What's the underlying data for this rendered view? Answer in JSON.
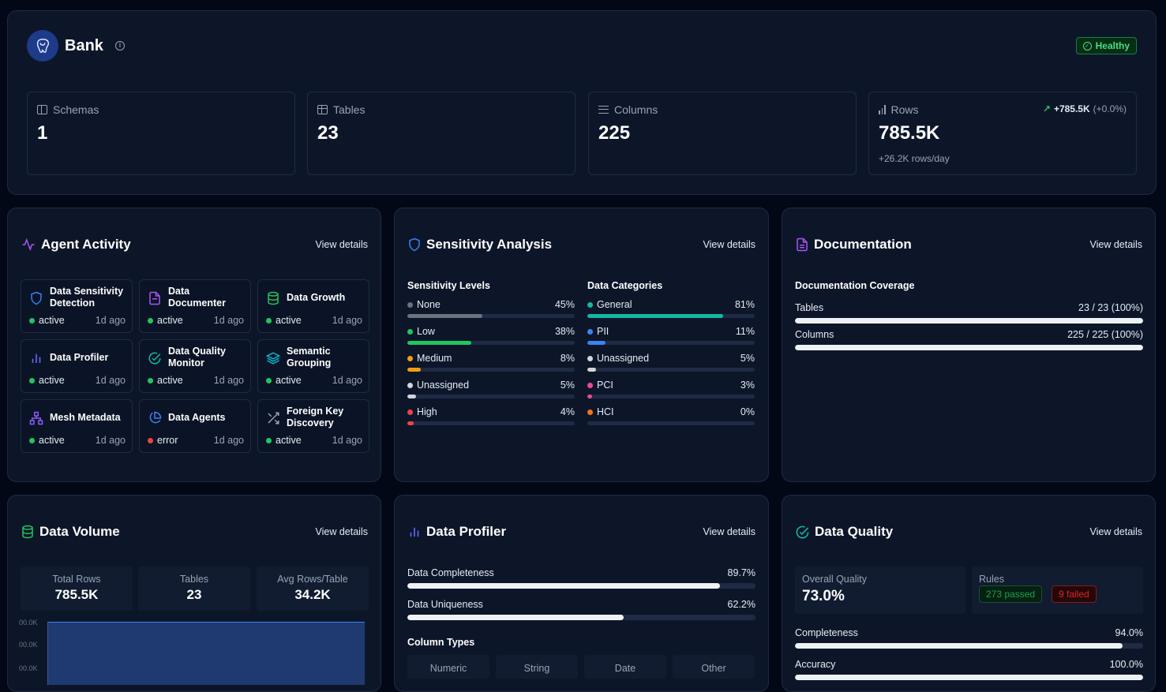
{
  "header": {
    "title": "Bank",
    "status": "Healthy",
    "colors": {
      "healthy": "#22c55e",
      "accent": "#3b82f6"
    }
  },
  "stats": {
    "schemas": {
      "label": "Schemas",
      "value": "1"
    },
    "tables": {
      "label": "Tables",
      "value": "23"
    },
    "columns": {
      "label": "Columns",
      "value": "225"
    },
    "rows": {
      "label": "Rows",
      "value": "785.5K",
      "change": "+785.5K",
      "change_pct": "(+0.0%)",
      "rate": "+26.2K rows/day"
    }
  },
  "agent_activity": {
    "title": "Agent Activity",
    "view_details": "View details",
    "agents": [
      {
        "name": "Data Sensitivity Detection",
        "status": "active",
        "time": "1d ago",
        "icon": "shield-icon"
      },
      {
        "name": "Data Documenter",
        "status": "active",
        "time": "1d ago",
        "icon": "document-icon"
      },
      {
        "name": "Data Growth",
        "status": "active",
        "time": "1d ago",
        "icon": "database-icon"
      },
      {
        "name": "Data Profiler",
        "status": "active",
        "time": "1d ago",
        "icon": "bar-chart-icon"
      },
      {
        "name": "Data Quality Monitor",
        "status": "active",
        "time": "1d ago",
        "icon": "check-circle-icon"
      },
      {
        "name": "Semantic Grouping",
        "status": "active",
        "time": "1d ago",
        "icon": "layers-icon"
      },
      {
        "name": "Mesh Metadata",
        "status": "active",
        "time": "1d ago",
        "icon": "network-icon"
      },
      {
        "name": "Data Agents",
        "status": "error",
        "time": "1d ago",
        "icon": "pie-chart-icon"
      },
      {
        "name": "Foreign Key Discovery",
        "status": "active",
        "time": "1d ago",
        "icon": "shuffle-icon"
      }
    ]
  },
  "sensitivity": {
    "title": "Sensitivity Analysis",
    "view_details": "View details",
    "levels_label": "Sensitivity Levels",
    "categories_label": "Data Categories",
    "levels": [
      {
        "name": "None",
        "pct": "45%",
        "value": 45,
        "color": "#6b7280"
      },
      {
        "name": "Low",
        "pct": "38%",
        "value": 38,
        "color": "#22c55e"
      },
      {
        "name": "Medium",
        "pct": "8%",
        "value": 8,
        "color": "#f59e0b"
      },
      {
        "name": "Unassigned",
        "pct": "5%",
        "value": 5,
        "color": "#d1d5db"
      },
      {
        "name": "High",
        "pct": "4%",
        "value": 4,
        "color": "#ef4444"
      }
    ],
    "categories": [
      {
        "name": "General",
        "pct": "81%",
        "value": 81,
        "color": "#14b8a6"
      },
      {
        "name": "PII",
        "pct": "11%",
        "value": 11,
        "color": "#3b82f6"
      },
      {
        "name": "Unassigned",
        "pct": "5%",
        "value": 5,
        "color": "#d1d5db"
      },
      {
        "name": "PCI",
        "pct": "3%",
        "value": 3,
        "color": "#ec4899"
      },
      {
        "name": "HCI",
        "pct": "0%",
        "value": 0,
        "color": "#f97316"
      }
    ]
  },
  "documentation": {
    "title": "Documentation",
    "view_details": "View details",
    "coverage_label": "Documentation Coverage",
    "items": [
      {
        "name": "Tables",
        "value_text": "23 / 23 (100%)",
        "value": 100
      },
      {
        "name": "Columns",
        "value_text": "225 / 225 (100%)",
        "value": 100
      }
    ]
  },
  "data_volume": {
    "title": "Data Volume",
    "view_details": "View details",
    "total_rows_label": "Total Rows",
    "total_rows": "785.5K",
    "tables_label": "Tables",
    "tables": "23",
    "avg_label": "Avg Rows/Table",
    "avg": "34.2K",
    "y_ticks": [
      "00.0K",
      "00.0K",
      "00.0K"
    ]
  },
  "data_profiler": {
    "title": "Data Profiler",
    "view_details": "View details",
    "metrics": [
      {
        "name": "Data Completeness",
        "value_text": "89.7%",
        "value": 89.7
      },
      {
        "name": "Data Uniqueness",
        "value_text": "62.2%",
        "value": 62.2
      }
    ],
    "column_types_label": "Column Types",
    "column_types": [
      "Numeric",
      "String",
      "Date",
      "Other"
    ]
  },
  "data_quality": {
    "title": "Data Quality",
    "view_details": "View details",
    "overall_label": "Overall Quality",
    "overall": "73.0%",
    "rules_label": "Rules",
    "passed": "273 passed",
    "failed": "9 failed",
    "metrics": [
      {
        "name": "Completeness",
        "value_text": "94.0%",
        "value": 94
      },
      {
        "name": "Accuracy",
        "value_text": "100.0%",
        "value": 100
      }
    ]
  }
}
